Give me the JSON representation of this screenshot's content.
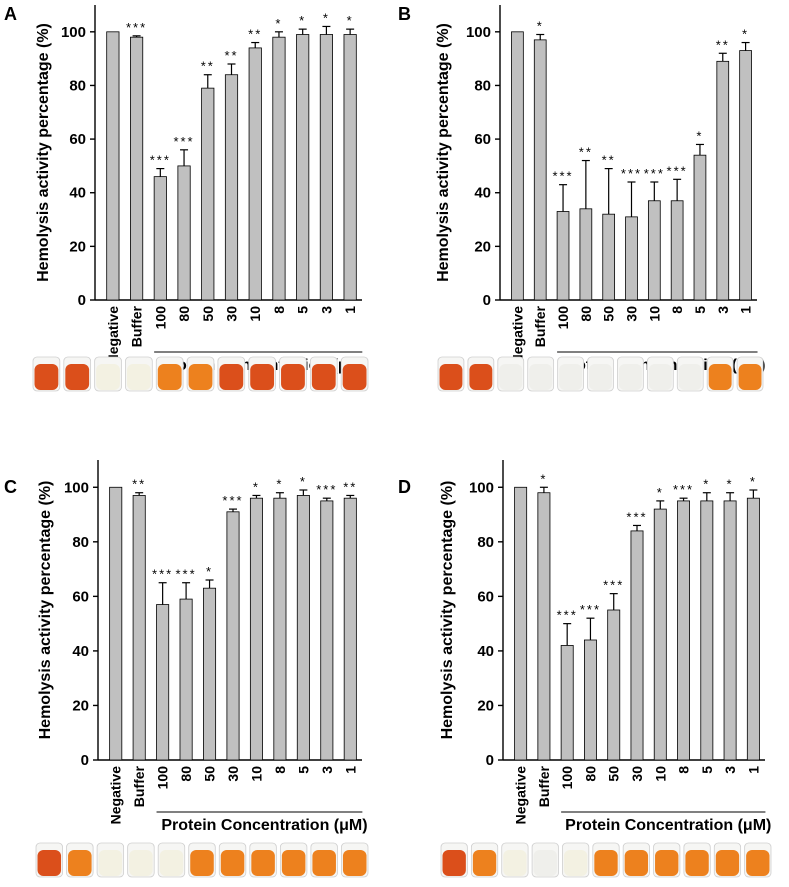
{
  "figure": {
    "colors": {
      "bar_fill": "#c0c0c0",
      "bar_stroke": "#000000",
      "axis": "#000000",
      "tube_red": "#d9460f",
      "tube_orange": "#ec7a12",
      "tube_pale": "#f2f0e0",
      "tube_clear": "#eeeeea"
    }
  },
  "chart_data": [
    {
      "panel": "A",
      "type": "bar",
      "ylabel": "Hemolysis activity percentage (%)",
      "xlabel": "Protein Concentration (μM)",
      "ylim": [
        0,
        110
      ],
      "yticks": [
        0,
        20,
        40,
        60,
        80,
        100
      ],
      "categories": [
        "Negative",
        "Buffer",
        "100",
        "80",
        "50",
        "30",
        "10",
        "8",
        "5",
        "3",
        "1"
      ],
      "values": [
        100,
        98,
        46,
        50,
        79,
        84,
        94,
        98,
        99,
        99,
        99
      ],
      "errors": [
        0,
        0.5,
        3,
        6,
        5,
        4,
        2,
        2,
        2,
        3,
        2
      ],
      "significance": [
        "",
        "***",
        "***",
        "***",
        "**",
        "**",
        "**",
        "*",
        "*",
        "*",
        "*"
      ],
      "tube_colors": [
        "tube_red",
        "tube_red",
        "tube_pale",
        "tube_pale",
        "tube_orange",
        "tube_orange",
        "tube_red",
        "tube_red",
        "tube_red",
        "tube_red",
        "tube_red"
      ]
    },
    {
      "panel": "B",
      "type": "bar",
      "ylabel": "Hemolysis activity percentage (%)",
      "xlabel": "Protein Concentration (μM)",
      "ylim": [
        0,
        110
      ],
      "yticks": [
        0,
        20,
        40,
        60,
        80,
        100
      ],
      "categories": [
        "Negative",
        "Buffer",
        "100",
        "80",
        "50",
        "30",
        "10",
        "8",
        "5",
        "3",
        "1"
      ],
      "values": [
        100,
        97,
        33,
        34,
        32,
        31,
        37,
        37,
        54,
        89,
        93
      ],
      "errors": [
        0,
        2,
        10,
        18,
        17,
        13,
        7,
        8,
        4,
        3,
        3
      ],
      "significance": [
        "",
        "*",
        "***",
        "**",
        "**",
        "***",
        "***",
        "***",
        "*",
        "**",
        "*"
      ],
      "tube_colors": [
        "tube_red",
        "tube_red",
        "tube_clear",
        "tube_clear",
        "tube_clear",
        "tube_clear",
        "tube_clear",
        "tube_clear",
        "tube_clear",
        "tube_orange",
        "tube_orange"
      ]
    },
    {
      "panel": "C",
      "type": "bar",
      "ylabel": "Hemolysis activity percentage (%)",
      "xlabel": "Protein Concentration (μM)",
      "ylim": [
        0,
        110
      ],
      "yticks": [
        0,
        20,
        40,
        60,
        80,
        100
      ],
      "categories": [
        "Negative",
        "Buffer",
        "100",
        "80",
        "50",
        "30",
        "10",
        "8",
        "5",
        "3",
        "1"
      ],
      "values": [
        100,
        97,
        57,
        59,
        63,
        91,
        96,
        96,
        97,
        95,
        96
      ],
      "errors": [
        0,
        1,
        8,
        6,
        3,
        1,
        1,
        2,
        2,
        1,
        1
      ],
      "significance": [
        "",
        "**",
        "***",
        "***",
        "*",
        "***",
        "*",
        "*",
        "*",
        "***",
        "**"
      ],
      "tube_colors": [
        "tube_red",
        "tube_orange",
        "tube_pale",
        "tube_pale",
        "tube_pale",
        "tube_orange",
        "tube_orange",
        "tube_orange",
        "tube_orange",
        "tube_orange",
        "tube_orange"
      ]
    },
    {
      "panel": "D",
      "type": "bar",
      "ylabel": "Hemolysis activity percentage (%)",
      "xlabel": "Protein Concentration (μM)",
      "ylim": [
        0,
        110
      ],
      "yticks": [
        0,
        20,
        40,
        60,
        80,
        100
      ],
      "categories": [
        "Negative",
        "Buffer",
        "100",
        "80",
        "50",
        "30",
        "10",
        "8",
        "5",
        "3",
        "1"
      ],
      "values": [
        100,
        98,
        42,
        44,
        55,
        84,
        92,
        95,
        95,
        95,
        96
      ],
      "errors": [
        0,
        2,
        8,
        8,
        6,
        2,
        3,
        1,
        3,
        3,
        3
      ],
      "significance": [
        "",
        "*",
        "***",
        "***",
        "***",
        "***",
        "*",
        "***",
        "*",
        "*",
        "*"
      ],
      "tube_colors": [
        "tube_red",
        "tube_orange",
        "tube_pale",
        "tube_clear",
        "tube_pale",
        "tube_orange",
        "tube_orange",
        "tube_orange",
        "tube_orange",
        "tube_orange",
        "tube_orange"
      ]
    }
  ]
}
